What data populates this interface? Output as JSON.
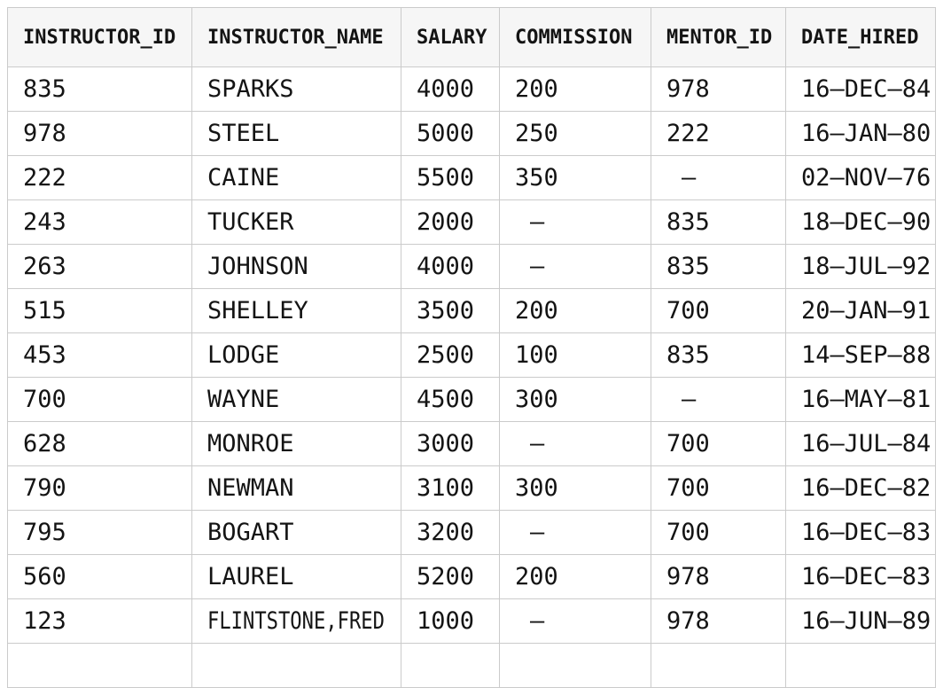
{
  "table": {
    "null_marker": "–",
    "columns": [
      "INSTRUCTOR_ID",
      "INSTRUCTOR_NAME",
      "SALARY",
      "COMMISSION",
      "MENTOR_ID",
      "DATE_HIRED"
    ],
    "rows": [
      [
        "835",
        "SPARKS",
        "4000",
        "200",
        "978",
        "16–DEC–84"
      ],
      [
        "978",
        "STEEL",
        "5000",
        "250",
        "222",
        "16–JAN–80"
      ],
      [
        "222",
        "CAINE",
        "5500",
        "350",
        "–",
        "02–NOV–76"
      ],
      [
        "243",
        "TUCKER",
        "2000",
        "–",
        "835",
        "18–DEC–90"
      ],
      [
        "263",
        "JOHNSON",
        "4000",
        "–",
        "835",
        "18–JUL–92"
      ],
      [
        "515",
        "SHELLEY",
        "3500",
        "200",
        "700",
        "20–JAN–91"
      ],
      [
        "453",
        "LODGE",
        "2500",
        "100",
        "835",
        "14–SEP–88"
      ],
      [
        "700",
        "WAYNE",
        "4500",
        "300",
        "–",
        "16–MAY–81"
      ],
      [
        "628",
        "MONROE",
        "3000",
        "–",
        "700",
        "16–JUL–84"
      ],
      [
        "790",
        "NEWMAN",
        "3100",
        "300",
        "700",
        "16–DEC–82"
      ],
      [
        "795",
        "BOGART",
        "3200",
        "–",
        "700",
        "16–DEC–83"
      ],
      [
        "560",
        "LAUREL",
        "5200",
        "200",
        "978",
        "16–DEC–83"
      ],
      [
        "123",
        "FLINTSTONE,FRED",
        "1000",
        "–",
        "978",
        "16–JUN–89"
      ],
      [
        "",
        "",
        "",
        "",
        "",
        ""
      ]
    ],
    "colors": {
      "header_bg": "#f6f6f6",
      "border": "#cbcbcb",
      "text": "#141414",
      "row_bg": "#ffffff"
    }
  }
}
